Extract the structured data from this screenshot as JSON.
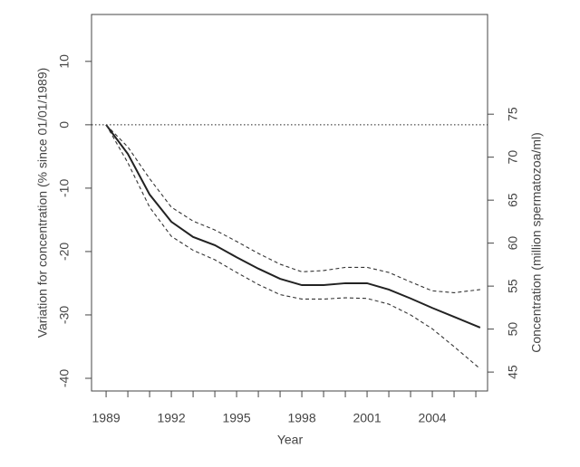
{
  "chart_data": {
    "type": "line",
    "x": [
      1989,
      1990,
      1991,
      1992,
      1993,
      1994,
      1995,
      1996,
      1997,
      1998,
      1999,
      2000,
      2001,
      2002,
      2003,
      2004,
      2005,
      2006.2
    ],
    "series": [
      {
        "color": "#222222",
        "style": "solid",
        "values": [
          0,
          -4.6,
          -11,
          -15.3,
          -17.7,
          -19,
          -20.9,
          -22.7,
          -24.3,
          -25.3,
          -25.3,
          -25,
          -25,
          -26,
          -27.4,
          -28.9,
          -30.3,
          -32
        ]
      },
      {
        "color": "#333333",
        "style": "dashed",
        "values": [
          0,
          -3.5,
          -8.5,
          -13,
          -15.2,
          -16.6,
          -18.4,
          -20.3,
          -22,
          -23.2,
          -23,
          -22.5,
          -22.5,
          -23.3,
          -24.8,
          -26.2,
          -26.5,
          -26
        ]
      },
      {
        "color": "#333333",
        "style": "dashed",
        "values": [
          0,
          -6,
          -13,
          -17.6,
          -19.8,
          -21.3,
          -23.3,
          -25.2,
          -26.8,
          -27.5,
          -27.5,
          -27.3,
          -27.4,
          -28.3,
          -30,
          -32.2,
          -35,
          -38.5
        ]
      }
    ],
    "reference_line": 0,
    "xlabel": "Year",
    "ylabel": "Variation for concentration (% since 01/01/1989)",
    "y2label": "Concentration (million spermatozoa/ml)",
    "xlim": [
      1988.33,
      2006.54
    ],
    "xticks": [
      1989,
      1992,
      1995,
      1998,
      2001,
      2004
    ],
    "xminorticks": [
      1990,
      1991,
      1993,
      1994,
      1996,
      1997,
      1999,
      2000,
      2002,
      2003,
      2005,
      2006
    ],
    "ylim": [
      -42,
      17.4
    ],
    "yticks": [
      -40,
      -30,
      -20,
      -10,
      0,
      10
    ],
    "y2lim": [
      42.8,
      86.6
    ],
    "y2ticks": [
      45,
      50,
      55,
      60,
      65,
      70,
      75
    ]
  }
}
